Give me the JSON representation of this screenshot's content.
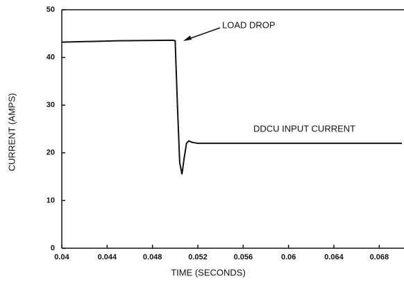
{
  "chart_data": {
    "type": "line",
    "xlabel": "TIME (SECONDS)",
    "ylabel": "CURRENT (AMPS)",
    "annotations": [
      "LOAD DROP",
      "DDCU INPUT CURRENT"
    ],
    "x": [
      0.04,
      0.045,
      0.0498,
      0.05,
      0.0502,
      0.0504,
      0.0506,
      0.0508,
      0.051,
      0.0512,
      0.0515,
      0.052,
      0.06,
      0.07
    ],
    "series": [
      {
        "color": "#111111",
        "values": [
          43.2,
          43.5,
          43.6,
          43.5,
          30,
          18,
          15.5,
          19,
          22,
          22.5,
          22.2,
          22,
          22,
          22
        ]
      }
    ],
    "xlim": [
      0.04,
      0.07
    ],
    "xticks": [
      0.04,
      0.044,
      0.048,
      0.052,
      0.056,
      0.06,
      0.064,
      0.068
    ],
    "ylim": [
      0,
      50
    ],
    "yticks": [
      0,
      10,
      20,
      30,
      40,
      50
    ],
    "grid": false
  }
}
